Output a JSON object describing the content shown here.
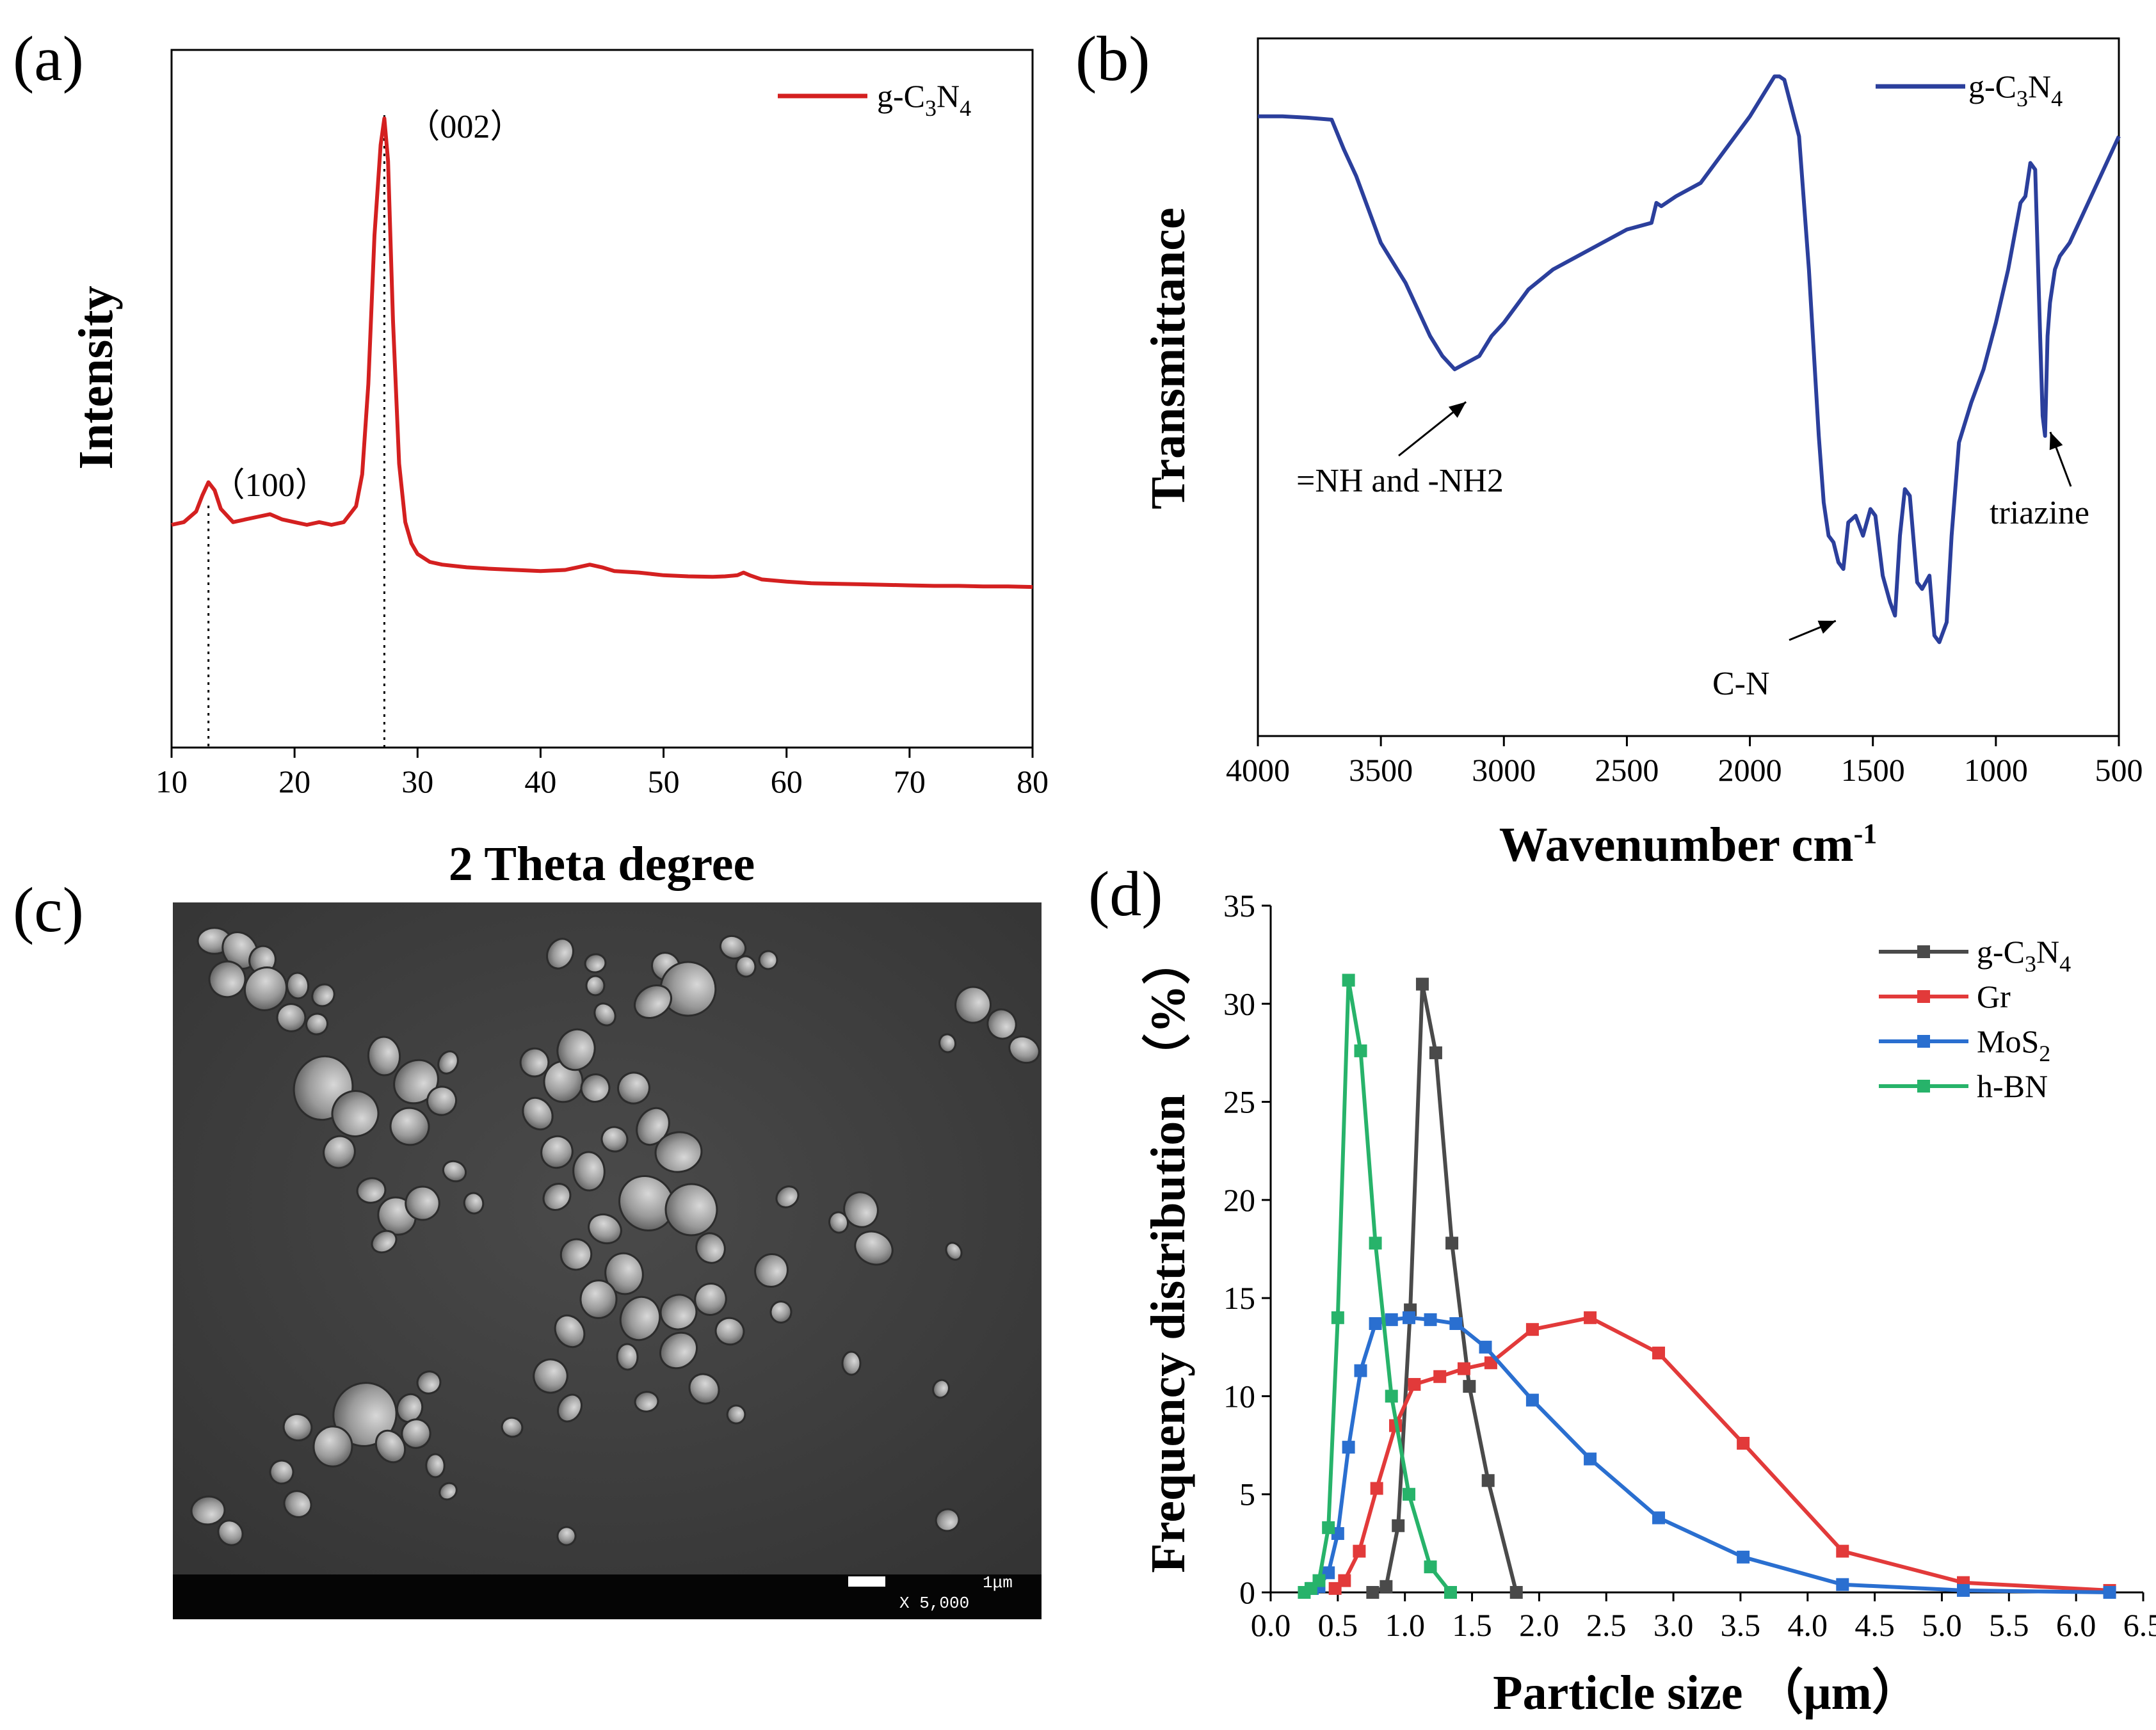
{
  "chart_data": [
    {
      "panel": "(a)",
      "type": "line",
      "xlabel": "2 Theta degree",
      "ylabel": "Intensity",
      "xlim": [
        10,
        80
      ],
      "xticks": [
        "10",
        "20",
        "30",
        "40",
        "50",
        "60",
        "70",
        "80"
      ],
      "legend": {
        "placement": "top-right"
      },
      "series": [
        {
          "label_prefix": "g-C",
          "label_sub1": "3",
          "label_mid": "N",
          "label_sub2": "4",
          "color": "#d42020",
          "x": [
            10,
            11,
            12,
            12.5,
            13,
            13.5,
            14,
            15,
            16,
            17,
            18,
            19,
            20,
            21,
            22,
            23,
            24,
            25,
            25.5,
            26,
            26.5,
            27,
            27.3,
            27.6,
            28,
            28.5,
            29,
            29.5,
            30,
            31,
            32,
            34,
            36,
            38,
            40,
            42,
            43,
            44,
            45,
            46,
            48,
            50,
            52,
            54,
            55,
            56,
            56.5,
            57,
            58,
            60,
            62,
            64,
            66,
            68,
            70,
            72,
            74,
            76,
            78,
            80
          ],
          "y": [
            0.235,
            0.24,
            0.26,
            0.29,
            0.315,
            0.3,
            0.265,
            0.24,
            0.245,
            0.25,
            0.255,
            0.245,
            0.24,
            0.235,
            0.24,
            0.235,
            0.24,
            0.27,
            0.33,
            0.5,
            0.78,
            0.95,
            1.0,
            0.92,
            0.62,
            0.35,
            0.24,
            0.2,
            0.18,
            0.165,
            0.16,
            0.155,
            0.152,
            0.15,
            0.148,
            0.15,
            0.155,
            0.16,
            0.155,
            0.148,
            0.145,
            0.14,
            0.138,
            0.137,
            0.138,
            0.14,
            0.145,
            0.14,
            0.132,
            0.128,
            0.125,
            0.124,
            0.123,
            0.122,
            0.121,
            0.12,
            0.12,
            0.119,
            0.119,
            0.118
          ]
        }
      ],
      "annotations": [
        {
          "text": "（100）",
          "x": 13
        },
        {
          "text": "（002）",
          "x": 27.3
        }
      ]
    },
    {
      "panel": "(b)",
      "type": "line",
      "xlabel": "Wavenumber cm",
      "xlabel_sup": "-1",
      "ylabel": "Transmittance",
      "xlim": [
        4000,
        500
      ],
      "xticks": [
        "4000",
        "3500",
        "3000",
        "2500",
        "2000",
        "1500",
        "1000",
        "500"
      ],
      "legend": {
        "placement": "top-right"
      },
      "series": [
        {
          "label_prefix": "g-C",
          "label_sub1": "3",
          "label_mid": "N",
          "label_sub2": "4",
          "color": "#2b3f9c",
          "x": [
            4000,
            3900,
            3800,
            3700,
            3650,
            3600,
            3500,
            3400,
            3300,
            3250,
            3200,
            3150,
            3100,
            3050,
            3000,
            2900,
            2800,
            2700,
            2600,
            2500,
            2400,
            2380,
            2360,
            2300,
            2200,
            2100,
            2000,
            1950,
            1900,
            1880,
            1860,
            1800,
            1760,
            1720,
            1700,
            1680,
            1660,
            1640,
            1620,
            1600,
            1570,
            1540,
            1510,
            1490,
            1460,
            1430,
            1410,
            1390,
            1370,
            1350,
            1320,
            1300,
            1270,
            1250,
            1230,
            1200,
            1180,
            1150,
            1100,
            1050,
            1000,
            950,
            900,
            880,
            860,
            840,
            820,
            810,
            800,
            790,
            780,
            760,
            740,
            700,
            650,
            600,
            550,
            500
          ],
          "y": [
            0.83,
            0.83,
            0.828,
            0.825,
            0.78,
            0.74,
            0.64,
            0.58,
            0.5,
            0.47,
            0.45,
            0.46,
            0.47,
            0.5,
            0.52,
            0.57,
            0.6,
            0.62,
            0.64,
            0.66,
            0.67,
            0.7,
            0.695,
            0.71,
            0.73,
            0.78,
            0.83,
            0.86,
            0.89,
            0.89,
            0.885,
            0.8,
            0.6,
            0.35,
            0.25,
            0.2,
            0.19,
            0.16,
            0.15,
            0.22,
            0.23,
            0.2,
            0.24,
            0.23,
            0.14,
            0.1,
            0.08,
            0.2,
            0.27,
            0.26,
            0.13,
            0.12,
            0.14,
            0.05,
            0.04,
            0.07,
            0.2,
            0.34,
            0.4,
            0.45,
            0.52,
            0.6,
            0.7,
            0.71,
            0.76,
            0.75,
            0.5,
            0.38,
            0.35,
            0.5,
            0.55,
            0.6,
            0.62,
            0.64,
            0.68,
            0.72,
            0.76,
            0.8
          ]
        }
      ],
      "annotations": [
        {
          "text": "=NH and -NH2",
          "x": 3180
        },
        {
          "text": "C-N",
          "x": 1630
        },
        {
          "text": "triazine",
          "x": 810
        }
      ]
    },
    {
      "panel": "(d)",
      "type": "line",
      "xlabel": "Particle size （μm）",
      "ylabel": "Frequency distribution （%）",
      "xlim": [
        0,
        6.5
      ],
      "ylim": [
        0,
        35
      ],
      "xticks": [
        "0.0",
        "0.5",
        "1.0",
        "1.5",
        "2.0",
        "2.5",
        "3.0",
        "3.5",
        "4.0",
        "4.5",
        "5.0",
        "5.5",
        "6.0",
        "6.5"
      ],
      "yticks": [
        "0",
        "5",
        "10",
        "15",
        "20",
        "25",
        "30",
        "35"
      ],
      "legend": {
        "placement": "top-right"
      },
      "series": [
        {
          "label": "g-C3N4",
          "label_prefix": "g-C",
          "label_sub1": "3",
          "label_mid": "N",
          "label_sub2": "4",
          "color": "#4a4a4a",
          "x": [
            0.76,
            0.86,
            0.95,
            1.04,
            1.13,
            1.23,
            1.35,
            1.48,
            1.62,
            1.83
          ],
          "y": [
            0,
            0.3,
            3.4,
            14.4,
            31.0,
            27.5,
            17.8,
            10.5,
            5.7,
            0
          ]
        },
        {
          "label": "Gr",
          "label_prefix": "Gr",
          "color": "#e23a3a",
          "x": [
            0.48,
            0.55,
            0.66,
            0.79,
            0.93,
            1.07,
            1.26,
            1.44,
            1.64,
            1.95,
            2.38,
            2.89,
            3.52,
            4.26,
            5.16,
            6.25
          ],
          "y": [
            0.2,
            0.6,
            2.1,
            5.3,
            8.5,
            10.6,
            11.0,
            11.4,
            11.7,
            13.4,
            14.0,
            12.2,
            7.6,
            2.1,
            0.5,
            0.1
          ]
        },
        {
          "label": "MoS2",
          "label_prefix": "MoS",
          "label_sub1": "2",
          "color": "#2a6fd0",
          "x": [
            0.31,
            0.36,
            0.43,
            0.5,
            0.58,
            0.67,
            0.78,
            0.9,
            1.03,
            1.19,
            1.38,
            1.6,
            1.95,
            2.38,
            2.89,
            3.52,
            4.26,
            5.16,
            6.25
          ],
          "y": [
            0.2,
            0.3,
            1.0,
            3.0,
            7.4,
            11.3,
            13.7,
            13.9,
            14.0,
            13.9,
            13.7,
            12.5,
            9.8,
            6.8,
            3.8,
            1.8,
            0.4,
            0.1,
            0.0
          ]
        },
        {
          "label": "h-BN",
          "label_prefix": "h-BN",
          "color": "#27b36a",
          "x": [
            0.25,
            0.3,
            0.36,
            0.43,
            0.5,
            0.58,
            0.67,
            0.78,
            0.9,
            1.03,
            1.19,
            1.34
          ],
          "y": [
            0,
            0.2,
            0.6,
            3.3,
            14.0,
            31.2,
            27.6,
            17.8,
            10.0,
            5.0,
            1.3,
            0
          ]
        }
      ]
    }
  ],
  "panels": {
    "a_label": "(a)",
    "b_label": "(b)",
    "c_label": "(c)",
    "d_label": "(d)",
    "sem_scale": "1μm",
    "sem_mag": "X 5,000"
  }
}
